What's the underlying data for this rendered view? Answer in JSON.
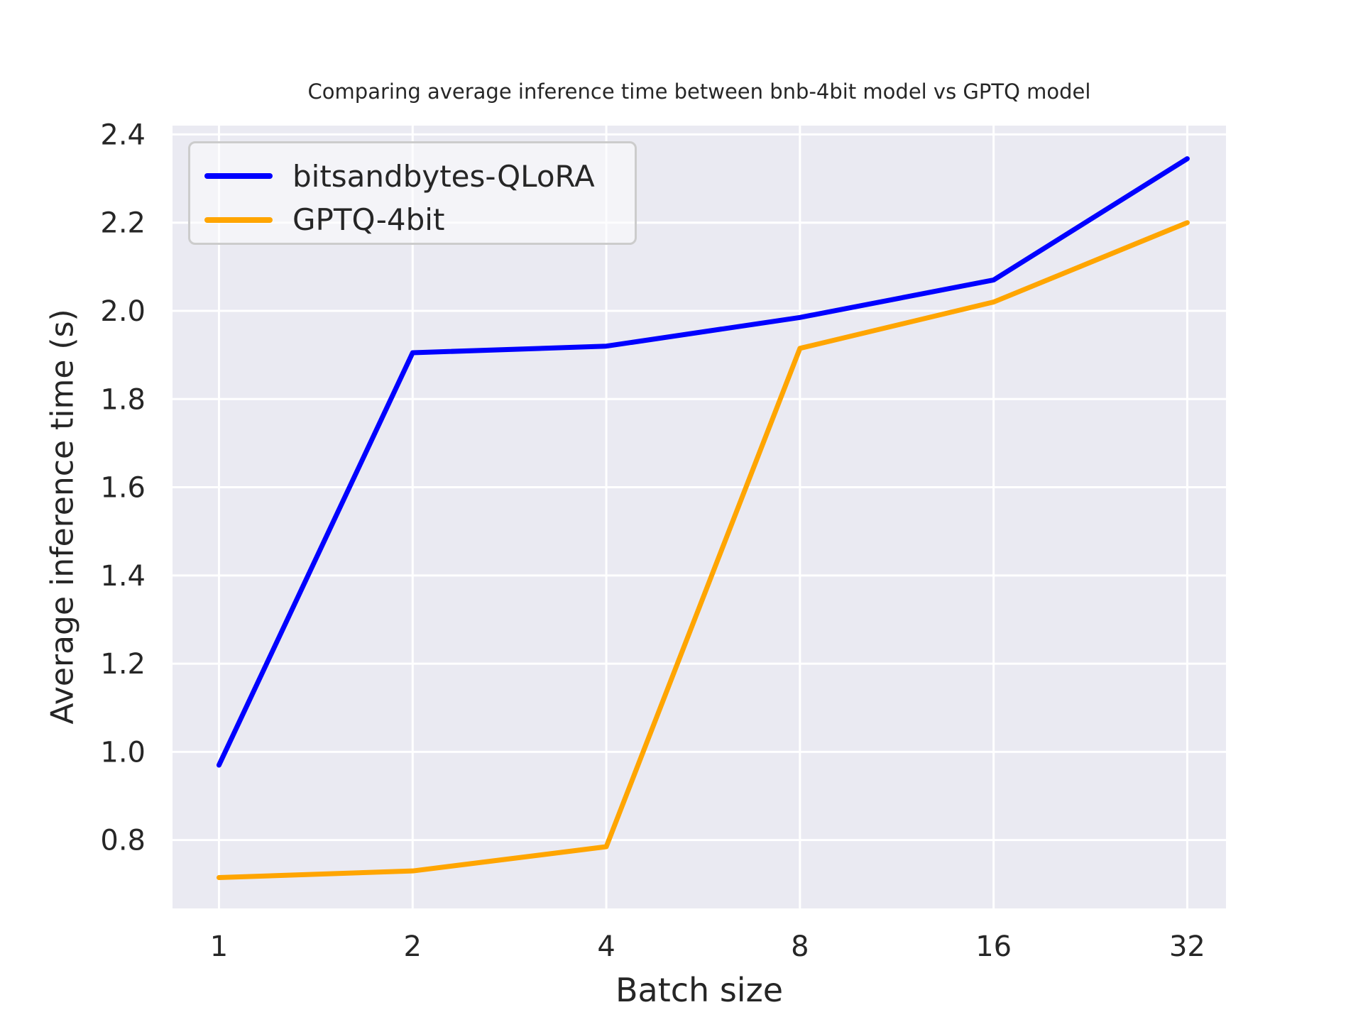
{
  "figure": {
    "background_color": "#ffffff",
    "plot_background_color": "#eaeaf2",
    "grid_color": "#ffffff",
    "text_color": "#262626"
  },
  "chart_data": {
    "type": "line",
    "title": "Comparing average inference time between bnb-4bit model vs GPTQ model",
    "xlabel": "Batch size",
    "ylabel": "Average inference time (s)",
    "categories": [
      "1",
      "2",
      "4",
      "8",
      "16",
      "32"
    ],
    "x_scale": "log2 (equal spacing between batch-size doublings)",
    "yticks": [
      0.8,
      1.0,
      1.2,
      1.4,
      1.6,
      1.8,
      2.0,
      2.2,
      2.4
    ],
    "ylim": [
      0.645,
      2.42
    ],
    "grid": true,
    "legend_position": "upper-left",
    "series": [
      {
        "name": "bitsandbytes-QLoRA",
        "color": "#0000ff",
        "values": [
          0.97,
          1.905,
          1.92,
          1.985,
          2.07,
          2.345
        ]
      },
      {
        "name": "GPTQ-4bit",
        "color": "#ffa500",
        "values": [
          0.715,
          0.73,
          0.785,
          1.915,
          2.02,
          2.2
        ]
      }
    ]
  }
}
